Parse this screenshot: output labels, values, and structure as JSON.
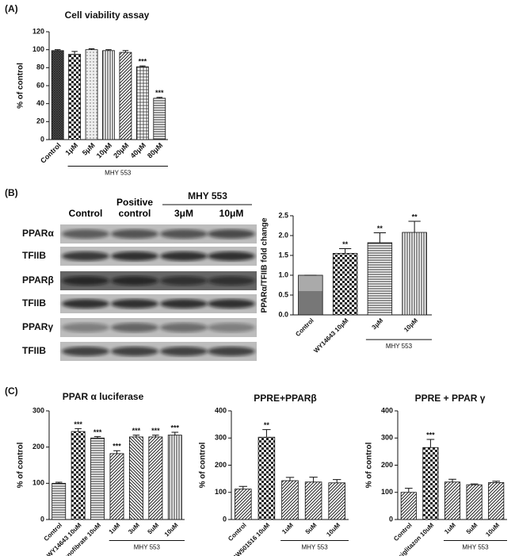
{
  "panel_labels": [
    "(A)",
    "(B)",
    "(C)"
  ],
  "blot": {
    "columns": [
      "Control",
      "Positive control",
      "3μM",
      "10μM"
    ],
    "group": "MHY 553",
    "rows": [
      "PPARα",
      "TFIIB",
      "PPARβ",
      "TFIIB",
      "PPARγ",
      "TFIIB"
    ]
  },
  "chart_data": [
    {
      "type": "bar",
      "title": "Cell viability assay",
      "ylabel": "% of control",
      "categories": [
        "Control",
        "1μM",
        "5μM",
        "10μM",
        "20μM",
        "40μM",
        "80μM"
      ],
      "values": [
        99,
        95,
        100,
        99,
        97,
        81,
        46
      ],
      "errors": [
        1,
        3,
        1,
        1,
        2,
        1,
        1
      ],
      "annotations": [
        null,
        null,
        null,
        null,
        null,
        "***",
        "***"
      ],
      "patterns": [
        "cross",
        "checker",
        "dots",
        "vlines",
        "diag",
        "grid",
        "hlines"
      ],
      "ylim": [
        0,
        120
      ],
      "yticks": [
        0,
        20,
        40,
        60,
        80,
        100,
        120
      ],
      "group": {
        "label": "MHY 553",
        "span": [
          1,
          6
        ]
      }
    },
    {
      "type": "bar",
      "ylabel": "PPARα/TFIIB fold change",
      "categories": [
        "Control",
        "WY14643 10μM",
        "3μM",
        "10μM"
      ],
      "values": [
        1.0,
        1.55,
        1.82,
        2.08
      ],
      "errors": [
        0,
        0.12,
        0.25,
        0.28
      ],
      "annotations": [
        null,
        "**",
        "**",
        "**"
      ],
      "patterns": [
        "gray",
        "checker",
        "hlines",
        "vlines"
      ],
      "ylim": [
        0,
        2.5
      ],
      "yticks": [
        {
          "value": 0,
          "label": "0.0"
        },
        0.5,
        {
          "value": 1,
          "label": "1.0"
        },
        1.5,
        {
          "value": 2,
          "label": "2.0"
        },
        2.5
      ],
      "group": {
        "label": "MHY 553",
        "span": [
          2,
          3
        ]
      }
    },
    {
      "type": "bar",
      "title": "PPAR α luciferase",
      "ylabel": "% of control",
      "categories": [
        "Control",
        "WY14643 10uM",
        "Fenofibrate 10uM",
        "1uM",
        "3uM",
        "5uM",
        "10uM"
      ],
      "values": [
        100,
        243,
        225,
        182,
        228,
        228,
        233
      ],
      "errors": [
        3,
        8,
        4,
        8,
        5,
        5,
        8
      ],
      "annotations": [
        null,
        "***",
        "***",
        "***",
        "***",
        "***",
        "***"
      ],
      "patterns": [
        "hlines",
        "checker",
        "hlines",
        "diag",
        "diag2",
        "diag",
        "vlines"
      ],
      "ylim": [
        0,
        300
      ],
      "yticks": [
        0,
        100,
        200,
        300
      ],
      "group": {
        "label": "MHY 553",
        "span": [
          3,
          6
        ]
      }
    },
    {
      "type": "bar",
      "title": "PPRE+PPARβ",
      "ylabel": "% of control",
      "categories": [
        "Control",
        "GW501516 10uM",
        "1uM",
        "5uM",
        "10uM"
      ],
      "values": [
        112,
        303,
        143,
        138,
        135
      ],
      "errors": [
        10,
        28,
        12,
        18,
        12
      ],
      "annotations": [
        null,
        "**",
        null,
        null,
        null
      ],
      "patterns": [
        "diag",
        "checker",
        "diag",
        "diag",
        "diag"
      ],
      "ylim": [
        0,
        400
      ],
      "yticks": [
        0,
        100,
        200,
        300,
        400
      ],
      "group": {
        "label": "MHY 553",
        "span": [
          2,
          4
        ]
      }
    },
    {
      "type": "bar",
      "title": "PPRE + PPAR γ",
      "ylabel": "% of control",
      "categories": [
        "Control",
        "Rosiglitazon 10uM",
        "1uM",
        "5uM",
        "10uM"
      ],
      "values": [
        100,
        265,
        138,
        128,
        136
      ],
      "errors": [
        15,
        30,
        10,
        3,
        5
      ],
      "annotations": [
        null,
        "***",
        null,
        null,
        null
      ],
      "patterns": [
        "diag",
        "checker",
        "diag",
        "diag",
        "diag"
      ],
      "ylim": [
        0,
        400
      ],
      "yticks": [
        0,
        100,
        200,
        300,
        400
      ],
      "group": {
        "label": "MHY 553",
        "span": [
          2,
          4
        ]
      }
    }
  ]
}
